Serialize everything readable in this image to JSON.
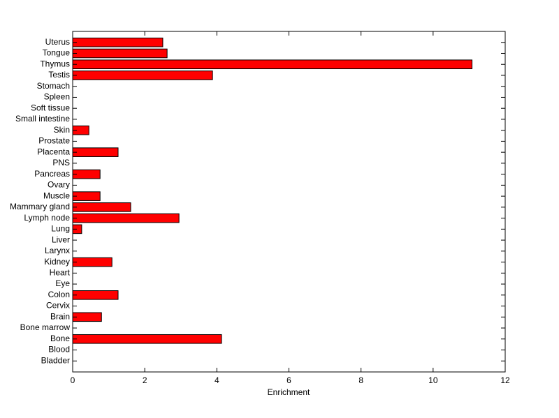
{
  "chart_data": {
    "type": "barh",
    "x_label": "Enrichment",
    "categories": [
      "Bladder",
      "Blood",
      "Bone",
      "Bone marrow",
      "Brain",
      "Cervix",
      "Colon",
      "Eye",
      "Heart",
      "Kidney",
      "Larynx",
      "Liver",
      "Lung",
      "Lymph node",
      "Mammary gland",
      "Muscle",
      "Ovary",
      "Pancreas",
      "PNS",
      "Placenta",
      "Prostate",
      "Skin",
      "Small intestine",
      "Soft tissue",
      "Spleen",
      "Stomach",
      "Testis",
      "Thymus",
      "Tongue",
      "Uterus"
    ],
    "values": [
      0,
      0,
      4.13,
      0,
      0.8,
      0,
      1.26,
      0,
      0,
      1.09,
      0,
      0,
      0.25,
      2.95,
      1.61,
      0.76,
      0,
      0.76,
      0,
      1.26,
      0,
      0.45,
      0,
      0,
      0,
      0,
      3.88,
      11.08,
      2.62,
      2.5
    ],
    "color": "#ff0000",
    "xlim": [
      0,
      12
    ],
    "xticks": [
      0,
      2,
      4,
      6,
      8,
      10,
      12
    ]
  }
}
